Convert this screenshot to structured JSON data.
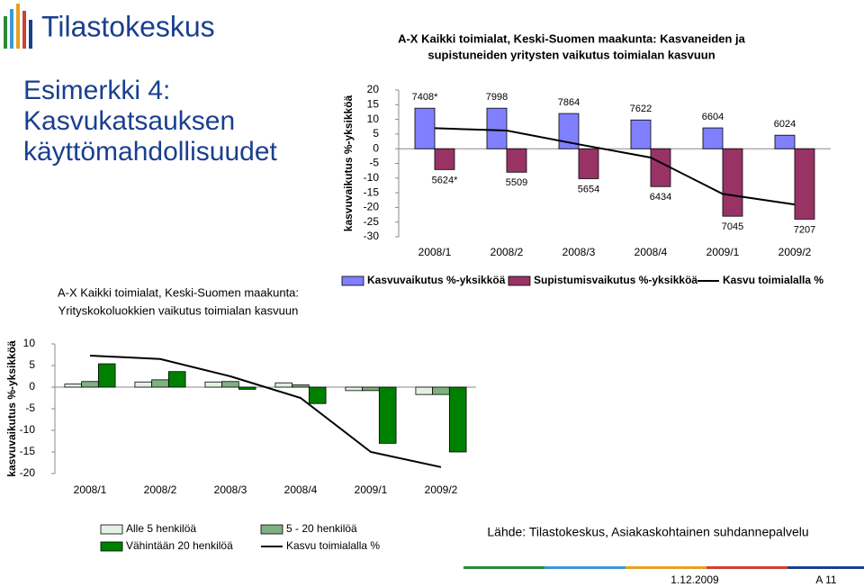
{
  "logo": "Tilastokeskus",
  "slide_title": [
    "Esimerkki 4:",
    "Kasvukatsauksen",
    "käyttömahdollisuudet"
  ],
  "chart_data": [
    {
      "type": "bar",
      "title": [
        "A-X Kaikki toimialat, Keski-Suomen maakunta: Kasvaneiden ja",
        "supistuneiden yritysten vaikutus toimialan kasvuun"
      ],
      "y_label": "kasvuvaikutus %-yksikköä",
      "categories": [
        "2008/1",
        "2008/2",
        "2008/3",
        "2008/4",
        "2009/1",
        "2009/2"
      ],
      "ylim": [
        -30,
        20
      ],
      "yticks": [
        -30,
        -25,
        -20,
        -15,
        -10,
        -5,
        0,
        5,
        10,
        15,
        20
      ],
      "legend": "bottom",
      "series": [
        {
          "name": "Kasvuvaikutus %-yksikköä",
          "color": "#8080ff",
          "values": [
            13.8,
            13.8,
            12,
            9.8,
            7.1,
            4.6
          ],
          "annotations": [
            "7408*",
            "7998",
            "7864",
            "7622",
            "6604",
            "6024"
          ]
        },
        {
          "name": "Supistumisvaikutus %-yksikköä",
          "color": "#993366",
          "values": [
            -7.1,
            -8,
            -10.2,
            -12.9,
            -23,
            -24
          ],
          "annotations": [
            "5624*",
            "5509",
            "5654",
            "6434",
            "7045",
            "7207"
          ]
        },
        {
          "name": "Kasvu toimialalla %",
          "color": "#000000",
          "type": "line",
          "values": [
            7,
            6.2,
            1.5,
            -3,
            -15.4,
            -19
          ]
        }
      ]
    },
    {
      "type": "bar",
      "title": [
        "A-X Kaikki toimialat, Keski-Suomen maakunta:",
        "Yrityskokoluokkien vaikutus toimialan kasvuun"
      ],
      "y_label": "kasvuvaikutus %-yksikköä",
      "categories": [
        "2008/1",
        "2008/2",
        "2008/3",
        "2008/4",
        "2009/1",
        "2009/2"
      ],
      "ylim": [
        -20,
        10
      ],
      "yticks": [
        -20,
        -15,
        -10,
        -5,
        0,
        5,
        10
      ],
      "legend": "bottom",
      "series": [
        {
          "name": "Alle 5 henkilöä",
          "color": "#e3f1e3",
          "values": [
            0.7,
            1.2,
            1.2,
            1,
            -0.8,
            -1.7
          ]
        },
        {
          "name": "5 - 20 henkilöä",
          "color": "#80b080",
          "values": [
            1.3,
            1.7,
            1.3,
            0.5,
            -0.8,
            -1.7
          ]
        },
        {
          "name": "Vähintään 20 henkilöä",
          "color": "#008000",
          "values": [
            5.4,
            3.6,
            -0.5,
            -3.8,
            -13,
            -15
          ]
        },
        {
          "name": "Kasvu toimialalla %",
          "color": "#000000",
          "type": "line",
          "values": [
            7.3,
            6.5,
            2.5,
            -2.5,
            -15,
            -18.5
          ]
        }
      ]
    }
  ],
  "source": "Lähde: Tilastokeskus, Asiakaskohtainen suhdannepalvelu",
  "footer": {
    "date": "1.12.2009",
    "page": "A 11"
  }
}
